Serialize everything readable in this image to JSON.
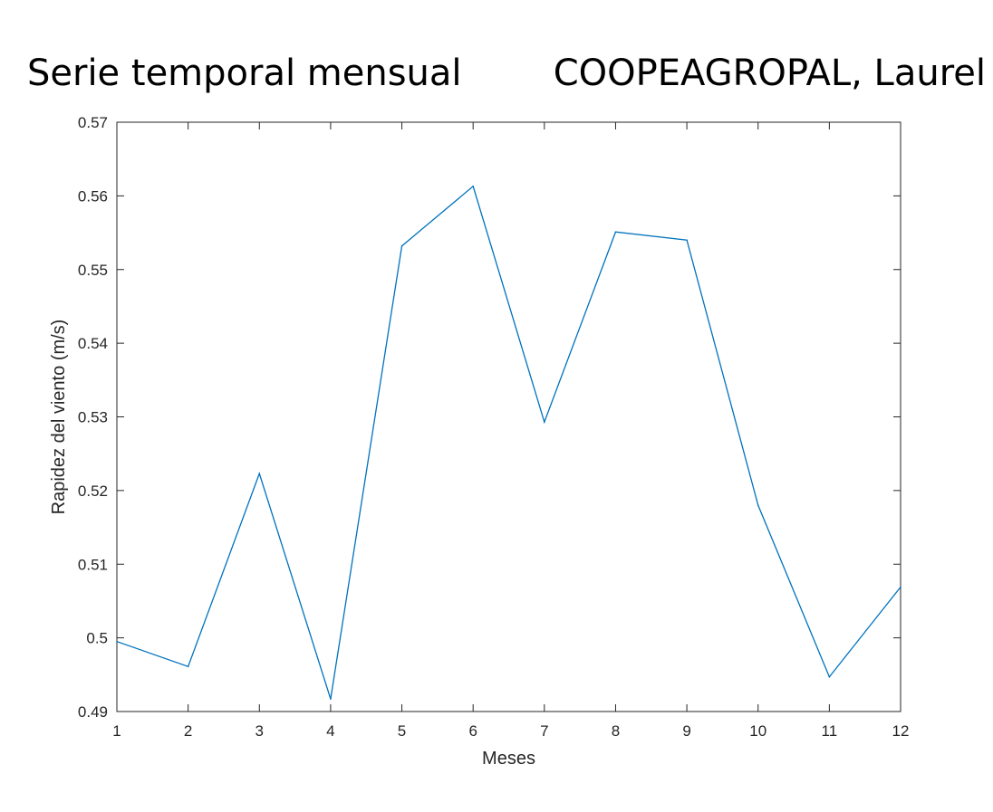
{
  "chart_data": {
    "type": "line",
    "title": "Serie temporal mensual",
    "subtitle": "COOPEAGROPAL, Laurel",
    "xlabel": "Meses",
    "ylabel": "Rapidez del viento (m/s)",
    "xlim": [
      1,
      12
    ],
    "ylim": [
      0.49,
      0.57
    ],
    "xticks": [
      1,
      2,
      3,
      4,
      5,
      6,
      7,
      8,
      9,
      10,
      11,
      12
    ],
    "yticks": [
      0.49,
      0.5,
      0.51,
      0.52,
      0.53,
      0.54,
      0.55,
      0.56,
      0.57
    ],
    "grid": false,
    "series": [
      {
        "color": "#0072bd",
        "x": [
          1,
          2,
          3,
          4,
          5,
          6,
          7,
          8,
          9,
          10,
          11,
          12
        ],
        "values": [
          0.4995,
          0.4961,
          0.5223,
          0.4917,
          0.5532,
          0.5613,
          0.5293,
          0.5551,
          0.554,
          0.518,
          0.4947,
          0.5069
        ]
      }
    ]
  }
}
